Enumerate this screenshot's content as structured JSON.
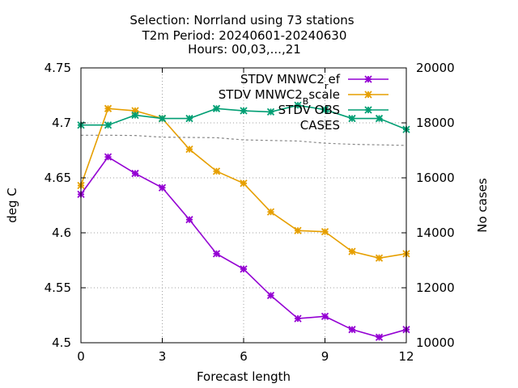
{
  "chart_data": {
    "type": "line",
    "title_lines": [
      "Selection: Norrland using    73 stations",
      "T2m   Period: 20240601-20240630",
      "Hours: 00,03,...,21"
    ],
    "xlabel": "Forecast length",
    "ylabel": "deg C",
    "y2label": "No cases",
    "xlim": [
      0,
      12
    ],
    "ylim": [
      4.5,
      4.75
    ],
    "y2lim": [
      10000,
      20000
    ],
    "xticks": [
      0,
      3,
      6,
      9,
      12
    ],
    "xtick_labels": [
      "0",
      "3",
      "6",
      "9",
      "12"
    ],
    "yticks": [
      4.5,
      4.55,
      4.6,
      4.65,
      4.7,
      4.75
    ],
    "ytick_labels": [
      "4.5",
      "4.55",
      "4.6",
      "4.65",
      "4.7",
      "4.75"
    ],
    "y2ticks": [
      10000,
      12000,
      14000,
      16000,
      18000,
      20000
    ],
    "y2tick_labels": [
      "10000",
      "12000",
      "14000",
      "16000",
      "18000",
      "20000"
    ],
    "grid": true,
    "legend_position": "top-right",
    "series": [
      {
        "name": "STDV MNWC2_ref",
        "label_main": "STDV MNWC2",
        "label_sub": "r",
        "label_tail": "ef",
        "color": "#9400d3",
        "axis": "y",
        "x": [
          0,
          1,
          2,
          3,
          4,
          5,
          6,
          7,
          8,
          9,
          10,
          11,
          12
        ],
        "values": [
          4.635,
          4.669,
          4.654,
          4.641,
          4.612,
          4.581,
          4.567,
          4.543,
          4.522,
          4.524,
          4.512,
          4.505,
          4.512
        ]
      },
      {
        "name": "STDV MNWC2_Bscale",
        "label_main": "STDV MNWC2",
        "label_sub": "B",
        "label_tail": "scale",
        "color": "#e69f00",
        "axis": "y",
        "x": [
          0,
          1,
          2,
          3,
          4,
          5,
          6,
          7,
          8,
          9,
          10,
          11,
          12
        ],
        "values": [
          4.643,
          4.713,
          4.711,
          4.704,
          4.676,
          4.656,
          4.645,
          4.619,
          4.602,
          4.601,
          4.583,
          4.577,
          4.581
        ]
      },
      {
        "name": "STDV OBS",
        "label_main": "STDV OBS",
        "label_sub": "",
        "label_tail": "",
        "color": "#009e73",
        "axis": "y",
        "x": [
          0,
          1,
          2,
          3,
          4,
          5,
          6,
          7,
          8,
          9,
          10,
          11,
          12
        ],
        "values": [
          4.698,
          4.698,
          4.707,
          4.704,
          4.704,
          4.713,
          4.711,
          4.71,
          4.716,
          4.712,
          4.704,
          4.704,
          4.694
        ]
      },
      {
        "name": "CASES",
        "label_main": "CASES",
        "label_sub": "",
        "label_tail": "",
        "color": "#888888",
        "axis": "y2",
        "dashed": true,
        "x": [
          0,
          1,
          2,
          3,
          4,
          5,
          6,
          7,
          8,
          9,
          10,
          11,
          12
        ],
        "values": [
          17550,
          17550,
          17540,
          17480,
          17470,
          17460,
          17380,
          17360,
          17340,
          17260,
          17220,
          17200,
          17180
        ]
      }
    ]
  }
}
